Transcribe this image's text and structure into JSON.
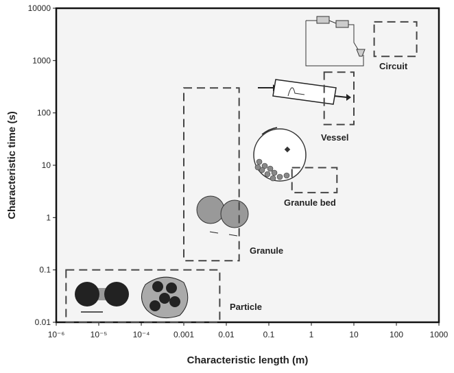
{
  "chart_data": {
    "type": "region",
    "x_label": "Characteristic length (m)",
    "y_label": "Characteristic time (s)",
    "xscale": "log",
    "yscale": "log",
    "xlim": [
      1e-06,
      1000
    ],
    "ylim": [
      0.01,
      10000
    ],
    "xticks": [
      {
        "value": 1e-06,
        "label": "10⁻⁶"
      },
      {
        "value": 1e-05,
        "label": "10⁻⁵"
      },
      {
        "value": 0.0001,
        "label": "10⁻⁴"
      },
      0.001,
      0.01,
      0.1,
      1,
      10,
      100,
      1000
    ],
    "yticks": [
      0.01,
      0.1,
      1,
      10,
      100,
      1000,
      10000
    ],
    "color": "#444444",
    "regions": [
      {
        "name": "Particle",
        "x": [
          1.7e-06,
          0.007
        ],
        "y": [
          0.01,
          0.1
        ]
      },
      {
        "name": "Granule",
        "x": [
          0.001,
          0.02
        ],
        "y": [
          0.15,
          300
        ]
      },
      {
        "name": "Granule bed",
        "x": [
          0.35,
          4
        ],
        "y": [
          3,
          9
        ]
      },
      {
        "name": "Vessel",
        "x": [
          2,
          10
        ],
        "y": [
          60,
          600
        ]
      },
      {
        "name": "Circuit",
        "x": [
          30,
          300
        ],
        "y": [
          1200,
          5500
        ]
      }
    ]
  }
}
